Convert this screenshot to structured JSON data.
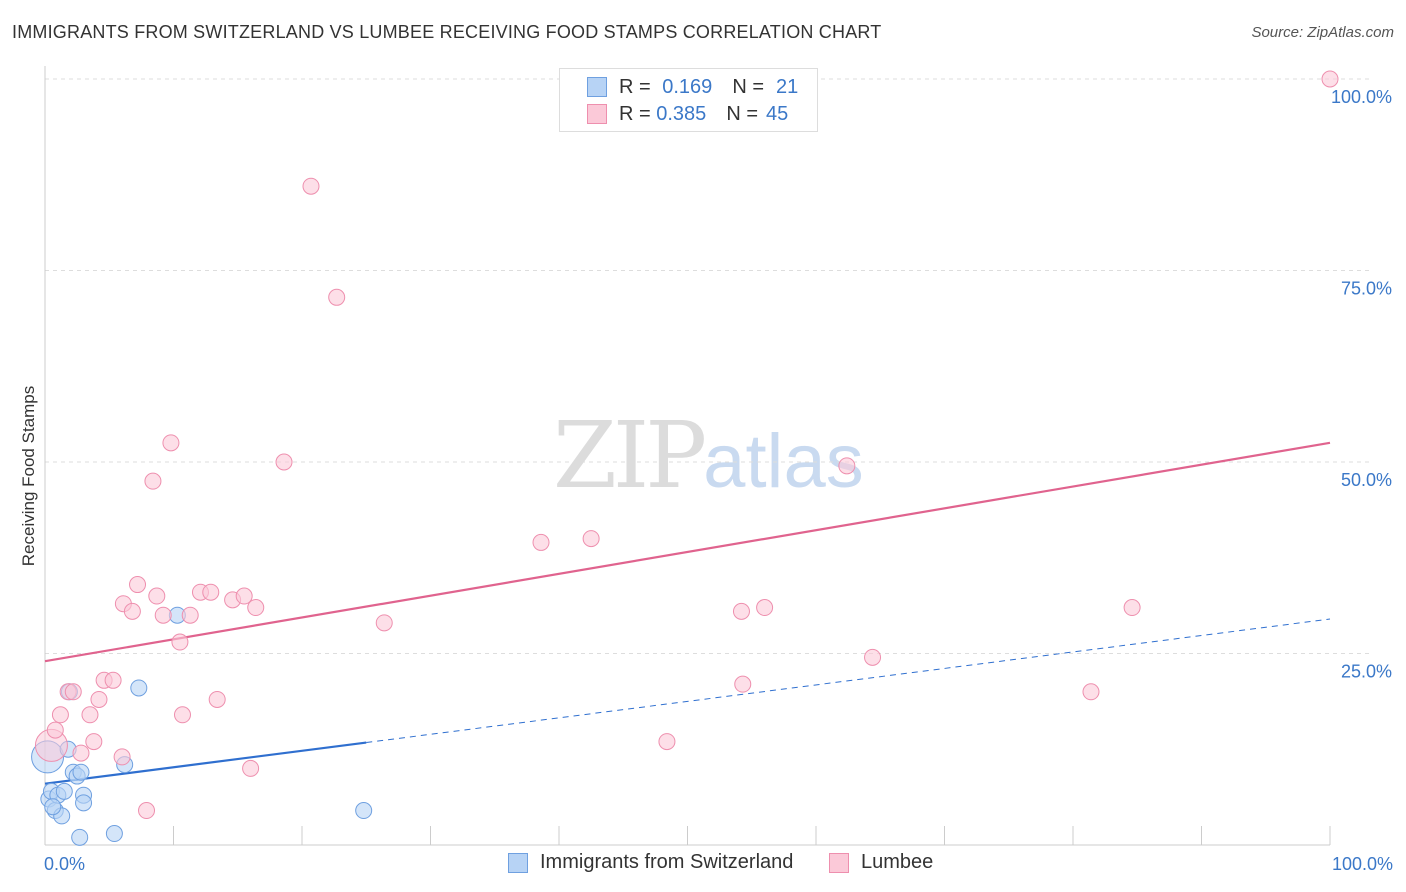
{
  "header": {
    "title": "IMMIGRANTS FROM SWITZERLAND VS LUMBEE RECEIVING FOOD STAMPS CORRELATION CHART",
    "source": "Source: ZipAtlas.com"
  },
  "watermark": {
    "zip": "ZIP",
    "atlas": "atlas"
  },
  "legend": {
    "rows": [
      {
        "r_label": "R =",
        "r_value": "0.169",
        "n_label": "N =",
        "n_value": "21",
        "color": "#b7d3f5",
        "border": "#6fa0e0"
      },
      {
        "r_label": "R =",
        "r_value": "0.385",
        "n_label": "N =",
        "n_value": "45",
        "color": "#fbc9d8",
        "border": "#ee8fae"
      }
    ]
  },
  "bottom_legend": [
    {
      "label": "Immigrants from Switzerland",
      "color": "#b7d3f5",
      "border": "#6fa0e0"
    },
    {
      "label": "Lumbee",
      "color": "#fbc9d8",
      "border": "#ee8fae"
    }
  ],
  "chart_data": {
    "type": "scatter",
    "ylabel": "Receiving Food Stamps",
    "xlim": [
      0,
      100
    ],
    "ylim": [
      0,
      100
    ],
    "x_tick_labels": [
      "0.0%",
      "100.0%"
    ],
    "y_ticks": [
      25,
      50,
      75,
      100
    ],
    "y_tick_labels": [
      "25.0%",
      "50.0%",
      "75.0%",
      "100.0%"
    ],
    "grid": true,
    "series": [
      {
        "name": "Immigrants from Switzerland",
        "color": "#6fa0e0",
        "fill": "#b7d3f5",
        "line_color": "#2f6fcf",
        "trend": {
          "x0": 0,
          "y0": 8.0,
          "x1": 100,
          "y1": 29.5,
          "solid_until": 25
        },
        "points": [
          {
            "x": 0.2,
            "y": 11.5,
            "big": true
          },
          {
            "x": 0.3,
            "y": 6.0
          },
          {
            "x": 0.5,
            "y": 7.0
          },
          {
            "x": 0.8,
            "y": 4.5
          },
          {
            "x": 1.0,
            "y": 6.5
          },
          {
            "x": 1.3,
            "y": 3.8
          },
          {
            "x": 1.5,
            "y": 7.0
          },
          {
            "x": 1.8,
            "y": 12.5
          },
          {
            "x": 1.9,
            "y": 20.0
          },
          {
            "x": 2.2,
            "y": 9.5
          },
          {
            "x": 2.5,
            "y": 9.0
          },
          {
            "x": 2.7,
            "y": 1.0
          },
          {
            "x": 2.8,
            "y": 9.5
          },
          {
            "x": 3.0,
            "y": 6.5
          },
          {
            "x": 3.0,
            "y": 5.5
          },
          {
            "x": 5.4,
            "y": 1.5
          },
          {
            "x": 6.2,
            "y": 10.5
          },
          {
            "x": 7.3,
            "y": 20.5
          },
          {
            "x": 10.3,
            "y": 30.0
          },
          {
            "x": 24.8,
            "y": 4.5
          },
          {
            "x": 0.6,
            "y": 5.0
          }
        ]
      },
      {
        "name": "Lumbee",
        "color": "#ee8fae",
        "fill": "#fbc9d8",
        "line_color": "#e0638e",
        "trend": {
          "x0": 0,
          "y0": 24.0,
          "x1": 100,
          "y1": 52.5,
          "solid_until": 100
        },
        "points": [
          {
            "x": 0.5,
            "y": 13.0,
            "big": true
          },
          {
            "x": 0.8,
            "y": 15.0
          },
          {
            "x": 1.2,
            "y": 17.0
          },
          {
            "x": 1.8,
            "y": 20.0
          },
          {
            "x": 2.2,
            "y": 20.0
          },
          {
            "x": 2.8,
            "y": 12.0
          },
          {
            "x": 3.5,
            "y": 17.0
          },
          {
            "x": 3.8,
            "y": 13.5
          },
          {
            "x": 4.2,
            "y": 19.0
          },
          {
            "x": 4.6,
            "y": 21.5
          },
          {
            "x": 5.3,
            "y": 21.5
          },
          {
            "x": 6.0,
            "y": 11.5
          },
          {
            "x": 6.1,
            "y": 31.5
          },
          {
            "x": 6.8,
            "y": 30.5
          },
          {
            "x": 7.2,
            "y": 34.0
          },
          {
            "x": 7.9,
            "y": 4.5
          },
          {
            "x": 8.4,
            "y": 47.5
          },
          {
            "x": 8.7,
            "y": 32.5
          },
          {
            "x": 9.2,
            "y": 30.0
          },
          {
            "x": 9.8,
            "y": 52.5
          },
          {
            "x": 10.5,
            "y": 26.5
          },
          {
            "x": 10.7,
            "y": 17.0
          },
          {
            "x": 11.3,
            "y": 30.0
          },
          {
            "x": 12.1,
            "y": 33.0
          },
          {
            "x": 12.9,
            "y": 33.0
          },
          {
            "x": 13.4,
            "y": 19.0
          },
          {
            "x": 14.6,
            "y": 32.0
          },
          {
            "x": 15.5,
            "y": 32.5
          },
          {
            "x": 16.0,
            "y": 10.0
          },
          {
            "x": 16.4,
            "y": 31.0
          },
          {
            "x": 18.6,
            "y": 50.0
          },
          {
            "x": 20.7,
            "y": 86.0
          },
          {
            "x": 22.7,
            "y": 71.5
          },
          {
            "x": 26.4,
            "y": 29.0
          },
          {
            "x": 38.6,
            "y": 39.5
          },
          {
            "x": 42.5,
            "y": 40.0
          },
          {
            "x": 48.4,
            "y": 13.5
          },
          {
            "x": 54.2,
            "y": 30.5
          },
          {
            "x": 54.3,
            "y": 21.0
          },
          {
            "x": 56.0,
            "y": 31.0
          },
          {
            "x": 62.4,
            "y": 49.5
          },
          {
            "x": 64.4,
            "y": 24.5
          },
          {
            "x": 81.4,
            "y": 20.0
          },
          {
            "x": 84.6,
            "y": 31.0
          },
          {
            "x": 100.0,
            "y": 100.0
          }
        ]
      }
    ]
  }
}
